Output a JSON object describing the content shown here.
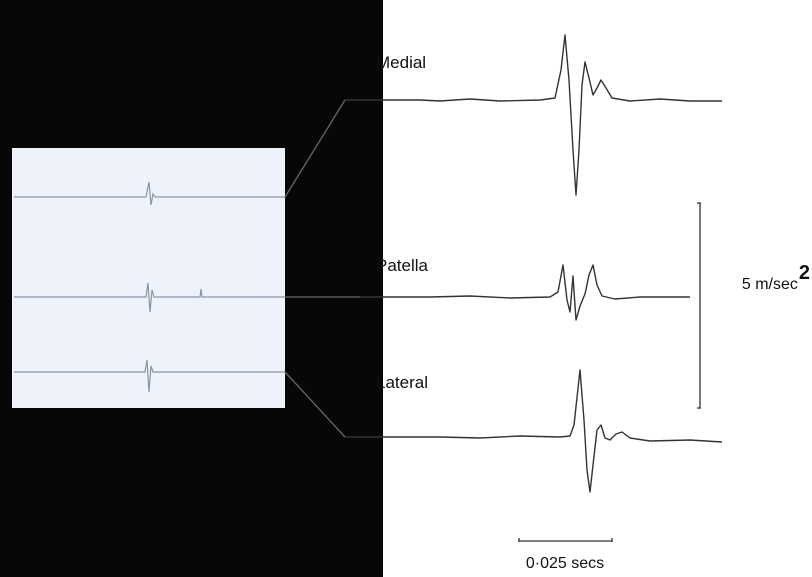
{
  "traces": [
    {
      "label": "Medial"
    },
    {
      "label": "Patella"
    },
    {
      "label": "Lateral"
    }
  ],
  "scale_bars": {
    "vertical": {
      "label": "5 m/sec",
      "superscript": "2"
    },
    "horizontal": {
      "label": "0·025 secs"
    }
  }
}
